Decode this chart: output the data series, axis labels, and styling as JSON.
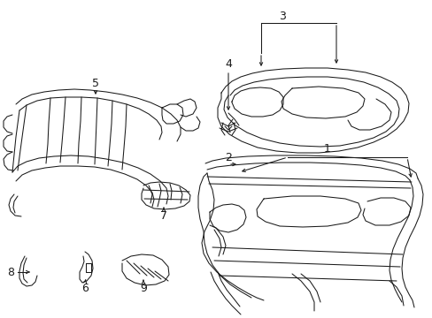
{
  "background_color": "#ffffff",
  "fig_width": 4.89,
  "fig_height": 3.6,
  "dpi": 100,
  "line_color": "#1a1a1a",
  "label_fontsize": 9,
  "lw": 0.75
}
